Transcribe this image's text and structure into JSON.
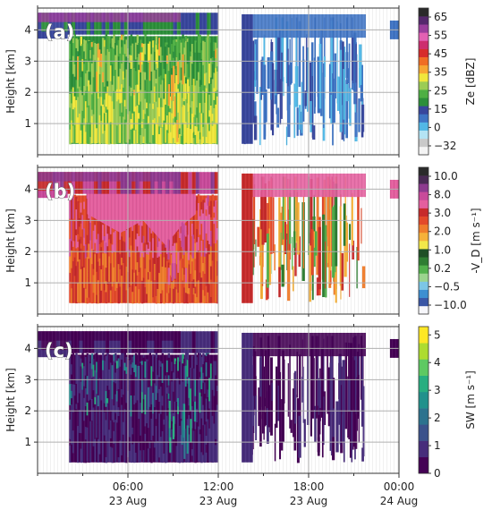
{
  "chart_data": [
    {
      "type": "heatmap",
      "panel_label": "(a)",
      "ylabel": "Height [km]",
      "yticks": [
        "1",
        "2",
        "3",
        "4"
      ],
      "ylim": [
        0,
        4.7
      ],
      "xlim_hours": [
        0,
        24
      ],
      "colorbar": {
        "label": "Ze [dBZ]",
        "ticks": [
          "65",
          "55",
          "45",
          "35",
          "25",
          "15",
          "0",
          "−32"
        ],
        "colors": [
          "#f4f4f4",
          "#c9c9c9",
          "#b4e4f4",
          "#52b8e6",
          "#3f74c4",
          "#38469c",
          "#2c8f3a",
          "#4eaf43",
          "#9bcc55",
          "#f0e73c",
          "#f7a733",
          "#f06d24",
          "#d72b2b",
          "#cd2d6e",
          "#e361b3",
          "#9a3e9c",
          "#55286d",
          "#2a2a2a"
        ]
      },
      "dominant_values": "Ze mostly 15–30 dBZ (green) from 02:00–12:00; scattered 5–20 dBZ echoes 14:00–21:30; >35 dBZ near ground around 09:00–10:00"
    },
    {
      "type": "heatmap",
      "panel_label": "(b)",
      "ylabel": "Height [km]",
      "yticks": [
        "1",
        "2",
        "3",
        "4"
      ],
      "ylim": [
        0,
        4.7
      ],
      "xlim_hours": [
        0,
        24
      ],
      "colorbar": {
        "label": "-V_D [m s⁻¹]",
        "ticks": [
          "10.0",
          "8.0",
          "3.0",
          "2.0",
          "1.0",
          "0.2",
          "−0.5",
          "−10.0"
        ],
        "colors": [
          "#f7f7fb",
          "#3a56a6",
          "#3d8fd1",
          "#7cc6e6",
          "#9bd48e",
          "#52b14c",
          "#2e7d32",
          "#1f4f26",
          "#f3e84a",
          "#f6b13a",
          "#ef7d2c",
          "#e34a2a",
          "#c72b2b",
          "#e45f9e",
          "#c84a9a",
          "#8d3a8f",
          "#4a2a55",
          "#2a2a2a"
        ]
      },
      "dominant_values": "-V_D 3–8 m/s (red/pink) in the upper layer 02:00–12:00; 0.2–2 m/s (green/yellow) in the afternoon"
    },
    {
      "type": "heatmap",
      "panel_label": "(c)",
      "ylabel": "Height [km]",
      "yticks": [
        "1",
        "2",
        "3",
        "4"
      ],
      "ylim": [
        0,
        4.7
      ],
      "xlim_hours": [
        0,
        24
      ],
      "xticks": [
        {
          "hour": 6,
          "line1": "06:00",
          "line2": "23 Aug"
        },
        {
          "hour": 12,
          "line1": "12:00",
          "line2": "23 Aug"
        },
        {
          "hour": 18,
          "line1": "18:00",
          "line2": "23 Aug"
        },
        {
          "hour": 24,
          "line1": "00:00",
          "line2": "24 Aug"
        }
      ],
      "colorbar": {
        "label": "SW [m s⁻¹]",
        "ticks": [
          "0",
          "1",
          "2",
          "3",
          "4",
          "5"
        ],
        "colors": [
          "#440154",
          "#472d7b",
          "#3b528b",
          "#2c728e",
          "#21918c",
          "#28ae80",
          "#5ec962",
          "#addc30",
          "#fde725"
        ]
      },
      "dominant_values": "Spectrum width mostly 0–0.5 m/s (dark purple); 1.5–2.5 m/s (teal) near cloud top 04:00–08:00"
    }
  ]
}
